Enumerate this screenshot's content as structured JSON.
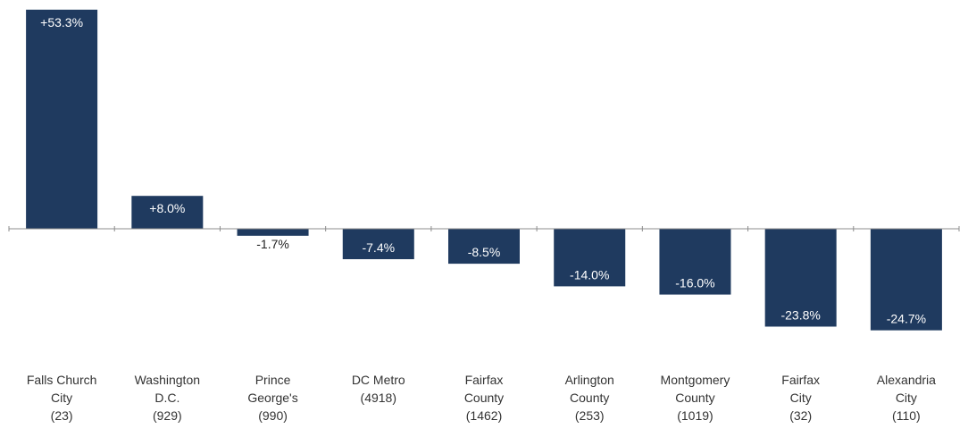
{
  "colors": {
    "bar": "#1f3a5f",
    "label_on_bar": "#ffffff",
    "label_off_bar": "#222222",
    "axis": "#8c8c8c",
    "tick_text": "#333333"
  },
  "chart_data": {
    "type": "bar",
    "title": "",
    "xlabel": "",
    "ylabel": "",
    "categories": [
      [
        "Falls Church",
        "City",
        "(23)"
      ],
      [
        "Washington",
        "D.C.",
        "(929)"
      ],
      [
        "Prince",
        "George's",
        "(990)"
      ],
      [
        "DC Metro",
        "(4918)"
      ],
      [
        "Fairfax",
        "County",
        "(1462)"
      ],
      [
        "Arlington",
        "County",
        "(253)"
      ],
      [
        "Montgomery",
        "County",
        "(1019)"
      ],
      [
        "Fairfax",
        "City",
        "(32)"
      ],
      [
        "Alexandria",
        "City",
        "(110)"
      ]
    ],
    "values": [
      53.3,
      8.0,
      -1.7,
      -7.4,
      -8.5,
      -14.0,
      -16.0,
      -23.8,
      -24.7
    ],
    "data_labels": [
      "+53.3%",
      "+8.0%",
      "-1.7%",
      "-7.4%",
      "-8.5%",
      "-14.0%",
      "-16.0%",
      "-23.8%",
      "-24.7%"
    ],
    "ylim": [
      -26,
      54
    ],
    "grid": false,
    "legend": "none"
  }
}
